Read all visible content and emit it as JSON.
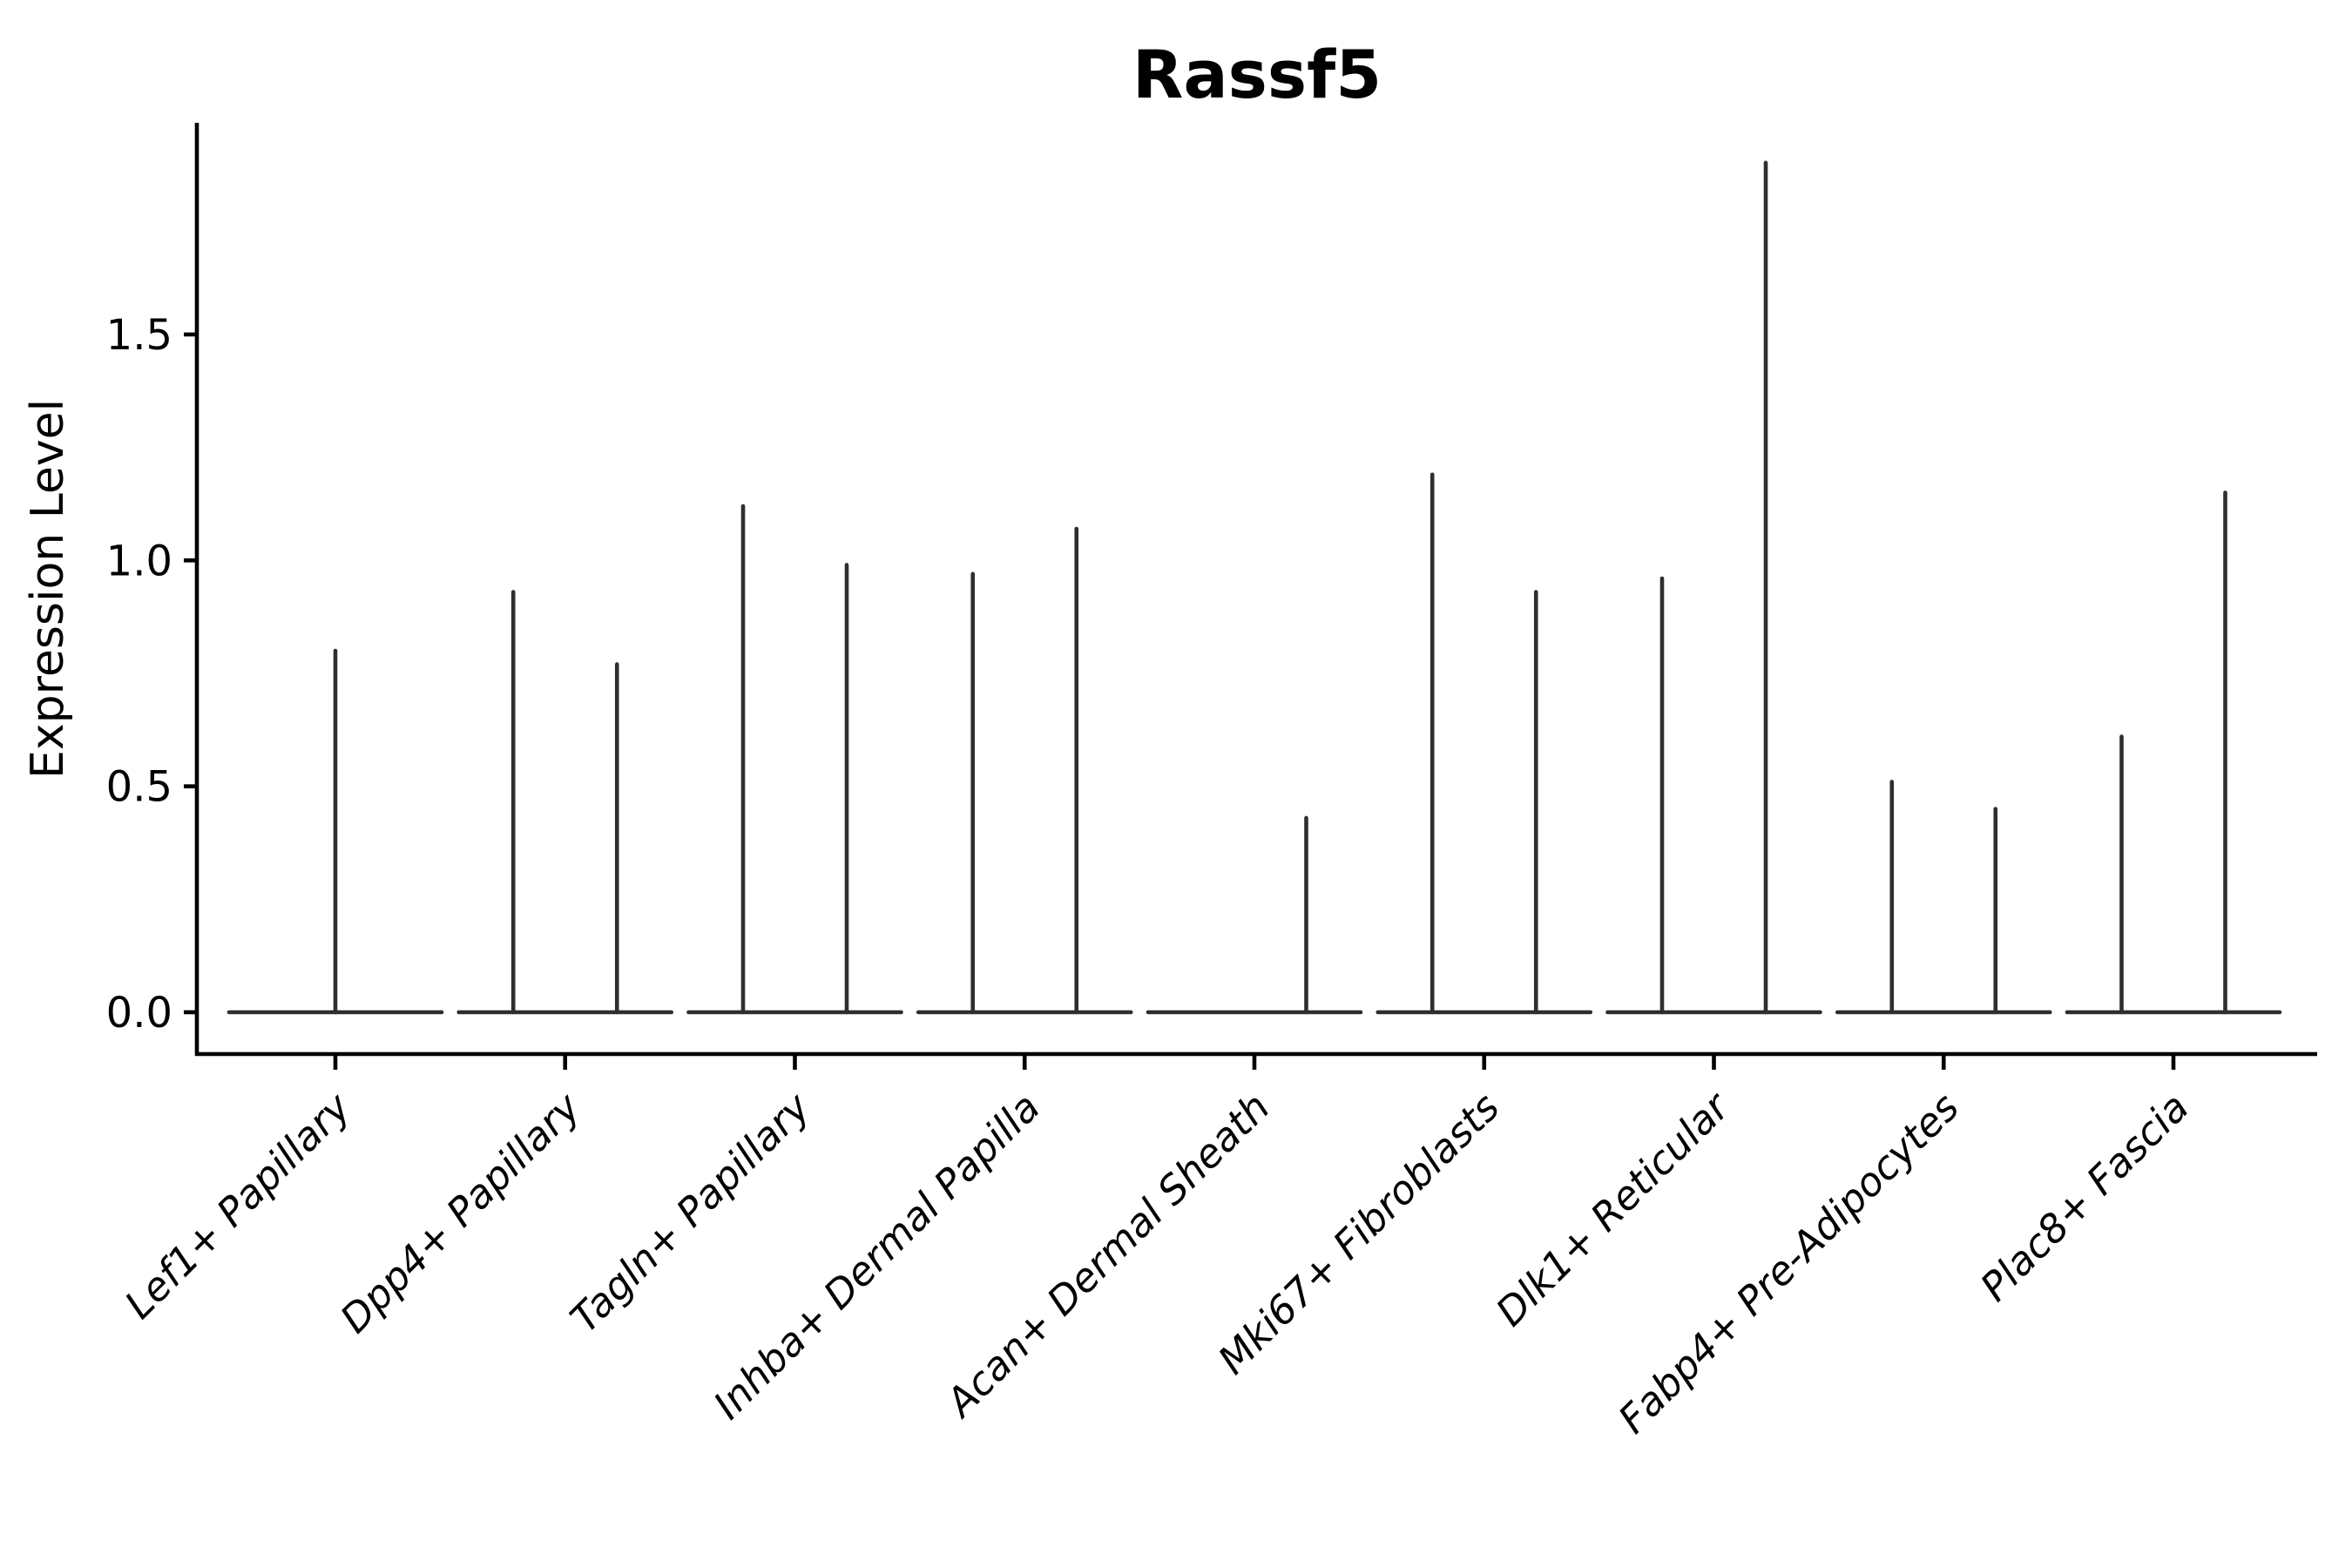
{
  "chart_data": {
    "type": "violin",
    "title": "Rassf5",
    "xlabel": "",
    "ylabel": "Expression Level",
    "ylim": [
      -0.09,
      1.97
    ],
    "yticks": [
      {
        "value": 0.0,
        "label": "0.0"
      },
      {
        "value": 0.5,
        "label": "0.5"
      },
      {
        "value": 1.0,
        "label": "1.0"
      },
      {
        "value": 1.5,
        "label": "1.5"
      }
    ],
    "grid": "off",
    "legend": "none",
    "x_tick_rotation": 45,
    "baseline_value": 0.0,
    "description": "Single-cell gene expression violin plot; each category shows flat zero-density baselines with thin spikes reaching the maximum expression value of each (dodged) group violin.",
    "categories": [
      "Lef1+ Papillary",
      "Dpp4+ Papillary",
      "Tagln+ Papillary",
      "Inhba+ Dermal Papilla",
      "Acan+ Dermal Sheath",
      "Mki67+ Fibroblasts",
      "Dlk1+ Reticular",
      "Fabp4+ Pre-Adipocytes",
      "Plac8+ Fascia"
    ],
    "violins": [
      {
        "category": "Lef1+ Papillary",
        "spikes": [
          {
            "position": "center",
            "max": 0.8
          }
        ]
      },
      {
        "category": "Dpp4+ Papillary",
        "spikes": [
          {
            "position": "left",
            "max": 0.93
          },
          {
            "position": "right",
            "max": 0.77
          }
        ]
      },
      {
        "category": "Tagln+ Papillary",
        "spikes": [
          {
            "position": "left",
            "max": 1.12
          },
          {
            "position": "right",
            "max": 0.99
          }
        ]
      },
      {
        "category": "Inhba+ Dermal Papilla",
        "spikes": [
          {
            "position": "left",
            "max": 0.97
          },
          {
            "position": "right",
            "max": 1.07
          }
        ]
      },
      {
        "category": "Acan+ Dermal Sheath",
        "spikes": [
          {
            "position": "right",
            "max": 0.43
          }
        ]
      },
      {
        "category": "Mki67+ Fibroblasts",
        "spikes": [
          {
            "position": "left",
            "max": 1.19
          },
          {
            "position": "right",
            "max": 0.93
          }
        ]
      },
      {
        "category": "Dlk1+ Reticular",
        "spikes": [
          {
            "position": "left",
            "max": 0.96
          },
          {
            "position": "right",
            "max": 1.88
          }
        ]
      },
      {
        "category": "Fabp4+ Pre-Adipocytes",
        "spikes": [
          {
            "position": "left",
            "max": 0.51
          },
          {
            "position": "right",
            "max": 0.45
          }
        ]
      },
      {
        "category": "Plac8+ Fascia",
        "spikes": [
          {
            "position": "left",
            "max": 0.61
          },
          {
            "position": "right",
            "max": 1.15
          }
        ]
      }
    ],
    "colors": {
      "violin_line": "#2e2e2e",
      "axis": "#000000",
      "text": "#000000",
      "background": "#ffffff"
    }
  }
}
